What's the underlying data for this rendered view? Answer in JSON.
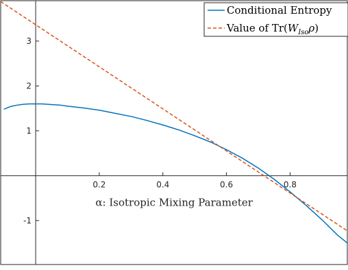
{
  "chart_data": {
    "type": "line",
    "title": "",
    "xlabel": "α: Isotropic Mixing Parameter",
    "ylabel": "",
    "xlim": [
      -0.11,
      0.98
    ],
    "ylim": [
      -1.98,
      3.9
    ],
    "xticks": [
      0.2,
      0.4,
      0.6,
      0.8
    ],
    "xtick_labels": [
      "0.2",
      "0.4",
      "0.6",
      "0.8"
    ],
    "yticks": [
      -1,
      1,
      2,
      3
    ],
    "ytick_labels": [
      "-1",
      "1",
      "2",
      "3"
    ],
    "grid": false,
    "legend_position": "top-right",
    "axes_through_origin": true,
    "series": [
      {
        "name": "Conditional Entropy",
        "style": "solid",
        "color": "#0072BD",
        "x": [
          -0.1,
          -0.08,
          -0.06,
          -0.04,
          -0.02,
          0.0,
          0.02,
          0.04,
          0.06,
          0.08,
          0.1,
          0.15,
          0.2,
          0.25,
          0.3,
          0.35,
          0.4,
          0.45,
          0.5,
          0.55,
          0.6,
          0.65,
          0.7,
          0.75,
          0.8,
          0.85,
          0.9,
          0.95,
          0.98
        ],
        "y": [
          1.48,
          1.54,
          1.57,
          1.59,
          1.6,
          1.6,
          1.6,
          1.59,
          1.58,
          1.57,
          1.55,
          1.51,
          1.46,
          1.39,
          1.32,
          1.23,
          1.13,
          1.02,
          0.89,
          0.75,
          0.58,
          0.39,
          0.17,
          -0.08,
          -0.36,
          -0.66,
          -0.98,
          -1.33,
          -1.5
        ]
      },
      {
        "name": "Value of Tr(W_Iso ρ)",
        "style": "dashed",
        "color": "#D95319",
        "x": [
          -0.11,
          0.98
        ],
        "y": [
          3.88,
          -1.23
        ]
      }
    ]
  }
}
